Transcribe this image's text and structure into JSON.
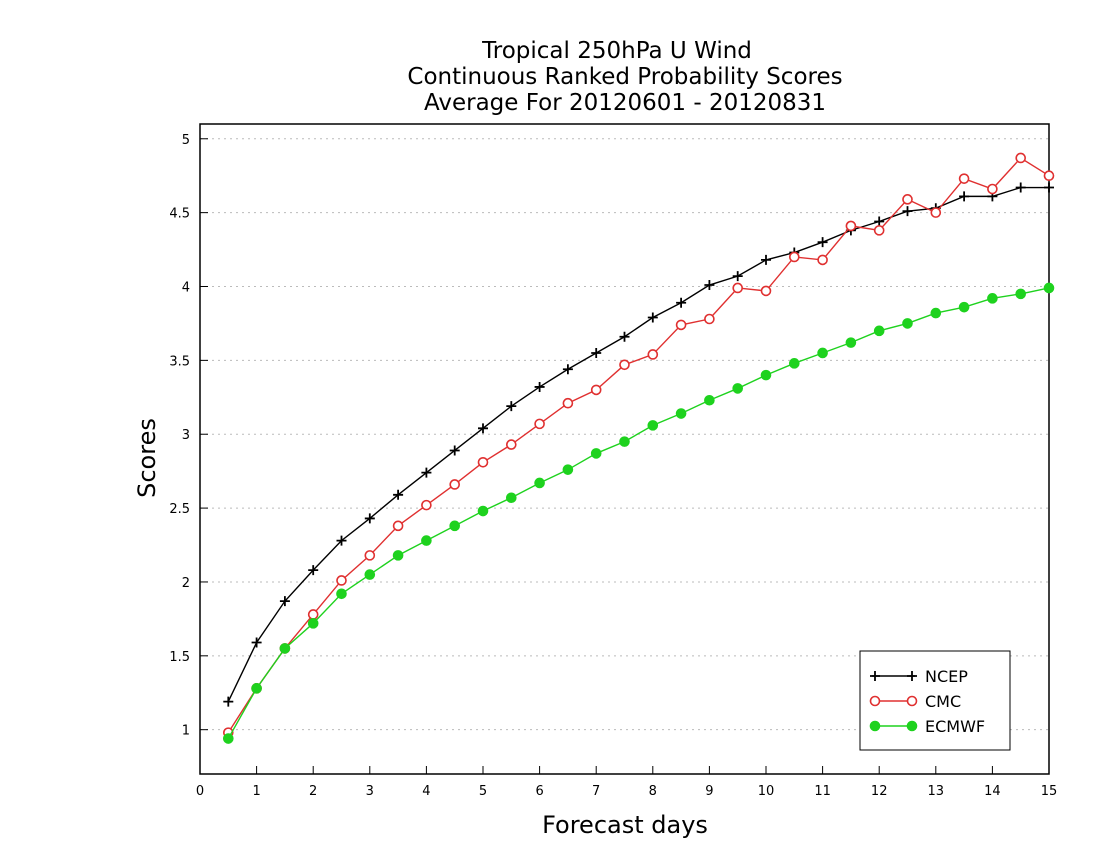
{
  "chart_data": {
    "type": "line",
    "title": [
      "Tropical 250hPa U Wind",
      "Continuous Ranked Probability Scores",
      "Average For 20120601 - 20120831"
    ],
    "xlabel": "Forecast days",
    "ylabel": "Scores",
    "xlim": [
      0,
      15
    ],
    "ylim": [
      0.7,
      5.1
    ],
    "xticks": [
      0,
      1,
      2,
      3,
      4,
      5,
      6,
      7,
      8,
      9,
      10,
      11,
      12,
      13,
      14,
      15
    ],
    "yticks": [
      1,
      1.5,
      2,
      2.5,
      3,
      3.5,
      4,
      4.5,
      5
    ],
    "ytick_labels": [
      "1",
      "1.5",
      "2",
      "2.5",
      "3",
      "3.5",
      "4",
      "4.5",
      "5"
    ],
    "grid": "horizontal dotted",
    "legend_position": "bottom-right",
    "x": [
      0.5,
      1,
      1.5,
      2,
      2.5,
      3,
      3.5,
      4,
      4.5,
      5,
      5.5,
      6,
      6.5,
      7,
      7.5,
      8,
      8.5,
      9,
      9.5,
      10,
      10.5,
      11,
      11.5,
      12,
      12.5,
      13,
      13.5,
      14,
      14.5,
      15
    ],
    "series": [
      {
        "name": "NCEP",
        "color": "#000000",
        "marker": "plus",
        "values": [
          1.19,
          1.59,
          1.87,
          2.08,
          2.28,
          2.43,
          2.59,
          2.74,
          2.89,
          3.04,
          3.19,
          3.32,
          3.44,
          3.55,
          3.66,
          3.79,
          3.89,
          4.01,
          4.07,
          4.18,
          4.23,
          4.3,
          4.38,
          4.44,
          4.51,
          4.53,
          4.61,
          4.61,
          4.67,
          4.67
        ]
      },
      {
        "name": "CMC",
        "color": "#e03030",
        "marker": "open-circle",
        "values": [
          0.98,
          1.28,
          1.55,
          1.78,
          2.01,
          2.18,
          2.38,
          2.52,
          2.66,
          2.81,
          2.93,
          3.07,
          3.21,
          3.3,
          3.47,
          3.54,
          3.74,
          3.78,
          3.99,
          3.97,
          4.2,
          4.18,
          4.41,
          4.38,
          4.59,
          4.5,
          4.73,
          4.66,
          4.87,
          4.75
        ]
      },
      {
        "name": "ECMWF",
        "color": "#1ed21e",
        "marker": "filled-circle",
        "values": [
          0.94,
          1.28,
          1.55,
          1.72,
          1.92,
          2.05,
          2.18,
          2.28,
          2.38,
          2.48,
          2.57,
          2.67,
          2.76,
          2.87,
          2.95,
          3.06,
          3.14,
          3.23,
          3.31,
          3.4,
          3.48,
          3.55,
          3.62,
          3.7,
          3.75,
          3.82,
          3.86,
          3.92,
          3.95,
          3.99
        ]
      }
    ]
  }
}
